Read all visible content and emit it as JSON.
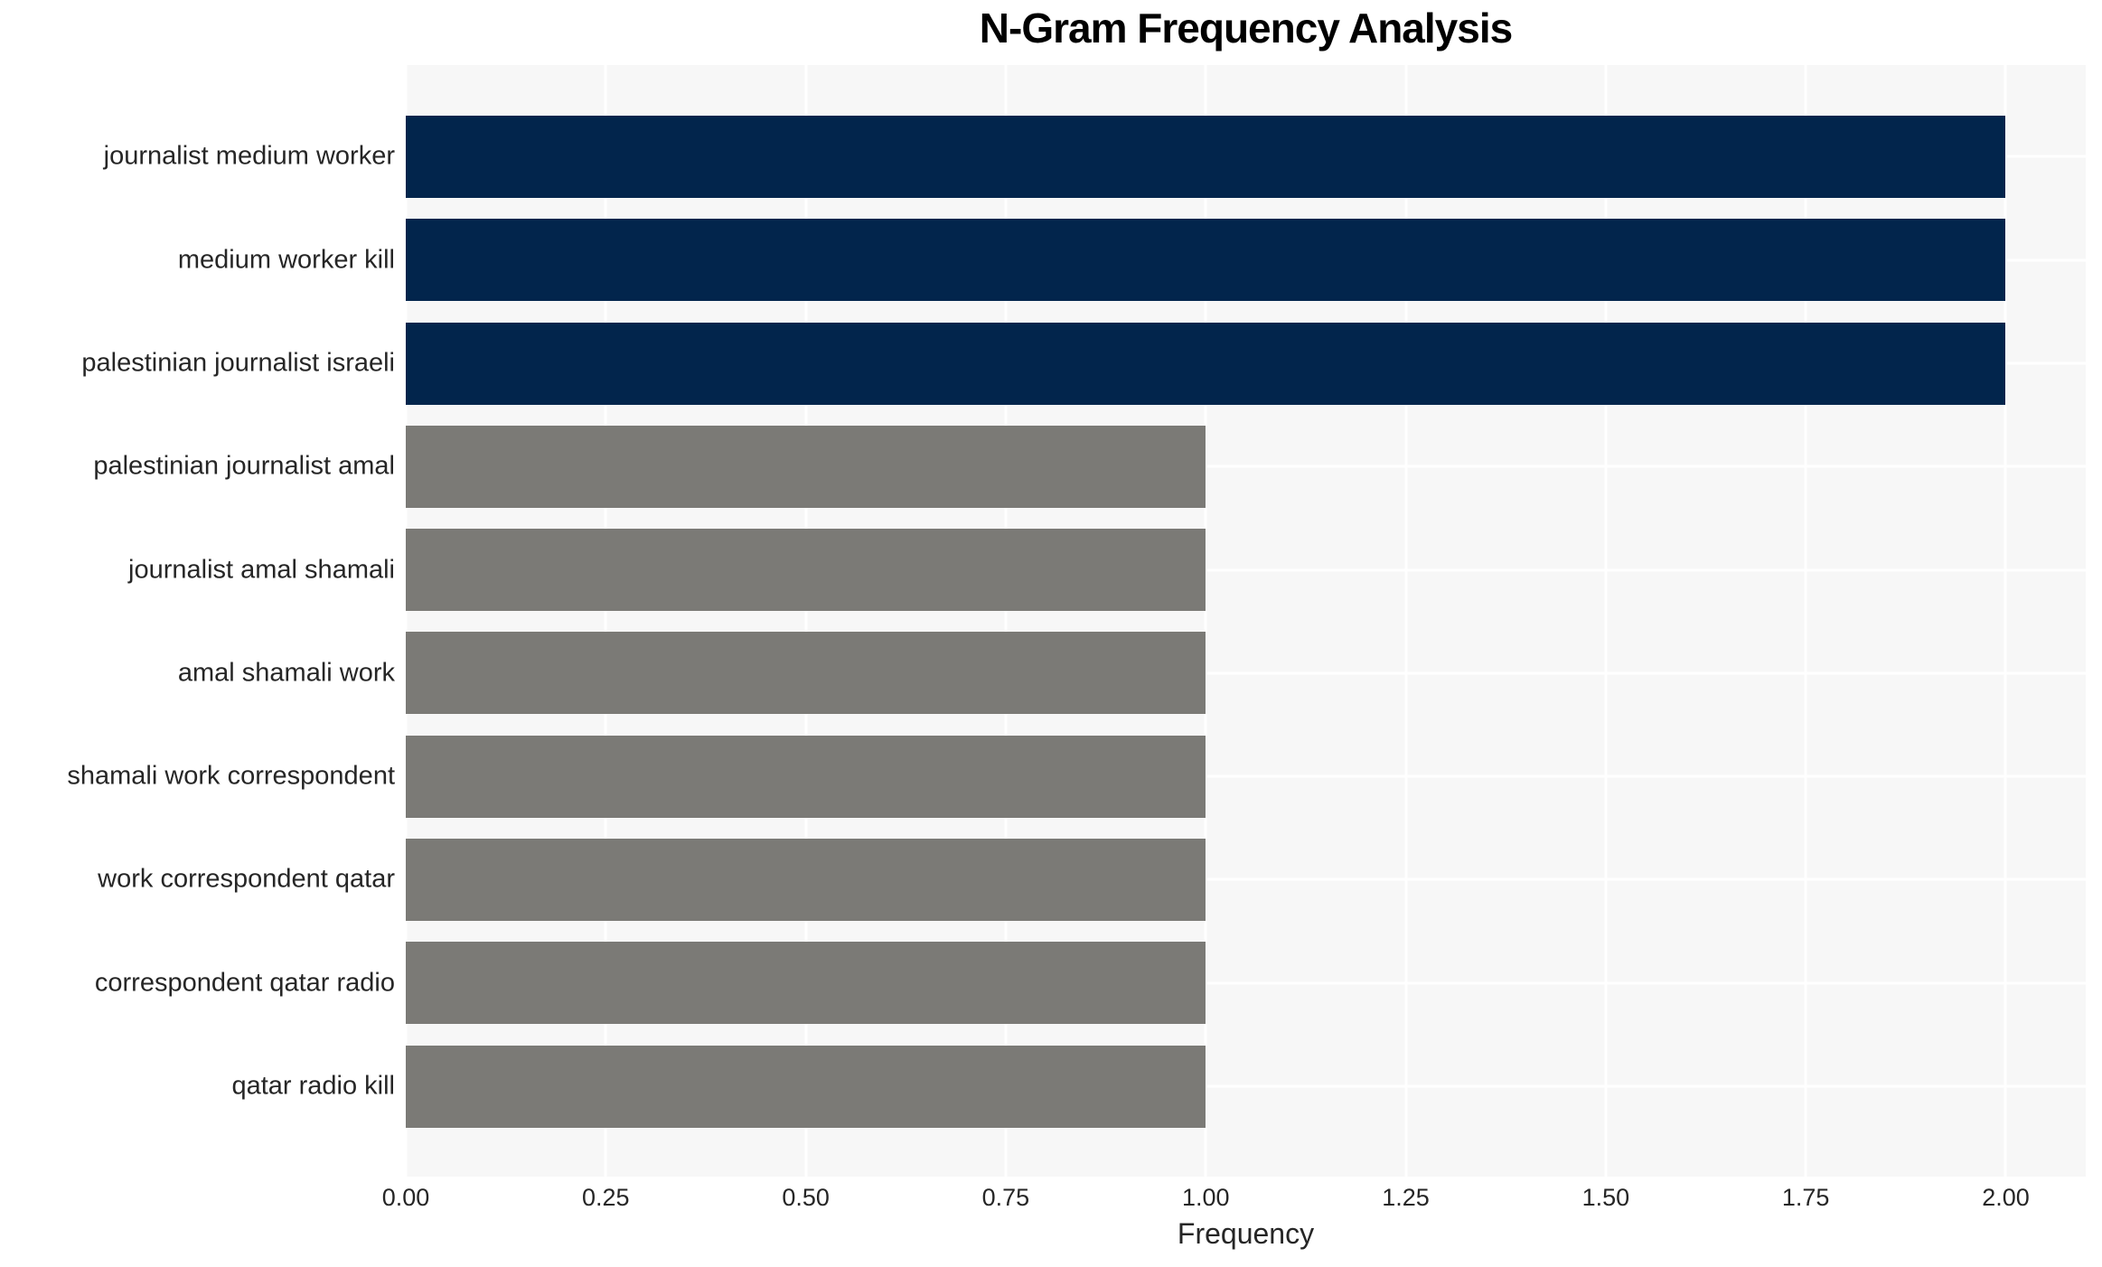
{
  "page": {
    "background_color": "#FFFFFF"
  },
  "chart_data": {
    "type": "bar",
    "orientation": "horizontal",
    "title": "N-Gram Frequency Analysis",
    "xlabel": "Frequency",
    "ylabel": "",
    "categories": [
      "journalist medium worker",
      "medium worker kill",
      "palestinian journalist israeli",
      "palestinian journalist amal",
      "journalist amal shamali",
      "amal shamali work",
      "shamali work correspondent",
      "work correspondent qatar",
      "correspondent qatar radio",
      "qatar radio kill"
    ],
    "values": [
      2,
      2,
      2,
      1,
      1,
      1,
      1,
      1,
      1,
      1
    ],
    "bar_colors": [
      "#02254C",
      "#02254C",
      "#02254C",
      "#7B7A76",
      "#7B7A76",
      "#7B7A76",
      "#7B7A76",
      "#7B7A76",
      "#7B7A76",
      "#7B7A76"
    ],
    "xlim": [
      0,
      2.1
    ],
    "xticks": [
      0,
      0.25,
      0.5,
      0.75,
      1,
      1.25,
      1.5,
      1.75,
      2
    ],
    "xtick_labels": [
      "0.00",
      "0.25",
      "0.50",
      "0.75",
      "1.00",
      "1.25",
      "1.50",
      "1.75",
      "2.00"
    ],
    "grid": true,
    "legend": false,
    "plot_background_color": "#F7F7F7",
    "gridline_color": "#FFFFFF",
    "text_color": "#262626",
    "title_color": "#000000"
  }
}
